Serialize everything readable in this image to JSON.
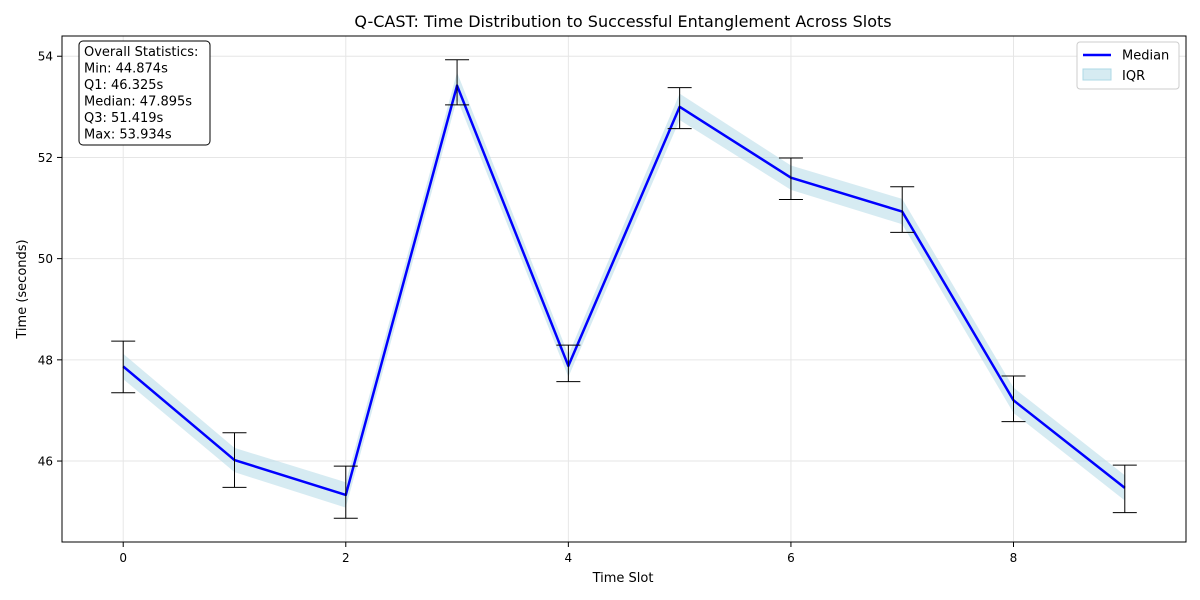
{
  "chart_data": {
    "type": "line",
    "title": "Q-CAST: Time Distribution to Successful Entanglement Across Slots",
    "xlabel": "Time Slot",
    "ylabel": "Time (seconds)",
    "xlim": [
      -0.55,
      9.55
    ],
    "ylim": [
      44.4,
      54.4
    ],
    "x_ticks": [
      0,
      2,
      4,
      6,
      8
    ],
    "y_ticks": [
      46,
      48,
      50,
      52,
      54
    ],
    "grid": true,
    "legend_position": "top-right",
    "x": [
      0,
      1,
      2,
      3,
      4,
      5,
      6,
      7,
      8,
      9
    ],
    "series": [
      {
        "name": "Median",
        "color": "#0000ff",
        "values": [
          47.87,
          46.02,
          45.33,
          53.42,
          47.88,
          53.0,
          51.6,
          50.93,
          47.2,
          45.47
        ]
      },
      {
        "name": "IQR",
        "color": "#add8e6",
        "q1": [
          47.62,
          45.78,
          45.08,
          53.16,
          47.66,
          52.74,
          51.36,
          50.68,
          46.95,
          45.22
        ],
        "q3": [
          48.12,
          46.26,
          45.58,
          53.68,
          48.1,
          53.26,
          51.84,
          51.18,
          47.45,
          45.72
        ]
      }
    ],
    "errorbars": {
      "min": [
        47.35,
        45.48,
        44.87,
        53.04,
        47.57,
        52.57,
        51.17,
        50.52,
        46.78,
        44.98
      ],
      "max": [
        48.37,
        46.56,
        45.9,
        53.93,
        48.29,
        53.38,
        51.99,
        51.42,
        47.68,
        45.92
      ]
    },
    "annotation": {
      "lines": [
        "Overall Statistics:",
        "Min: 44.874s",
        "Q1: 46.325s",
        "Median: 47.895s",
        "Q3: 51.419s",
        "Max: 53.934s"
      ]
    }
  }
}
